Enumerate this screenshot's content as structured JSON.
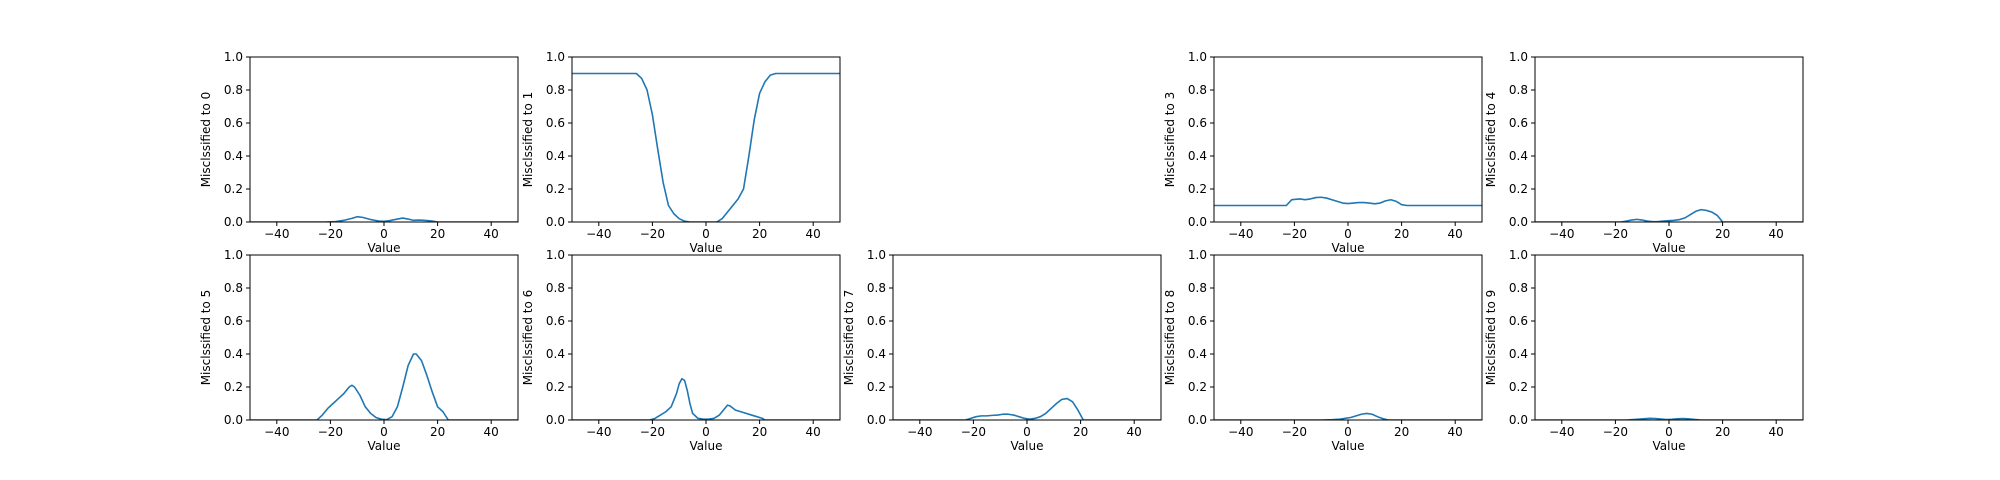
{
  "figure": {
    "line_color": "#1f77b4"
  },
  "chart_data": [
    {
      "type": "line",
      "xlabel": "Value",
      "ylabel": "Misclssified to 0",
      "xlim": [
        -50,
        50
      ],
      "ylim": [
        0,
        1
      ],
      "xticks": [
        -40,
        -20,
        0,
        20,
        40
      ],
      "yticks": [
        0.0,
        0.2,
        0.4,
        0.6,
        0.8,
        1.0
      ],
      "xtick_labels": [
        "−40",
        "−20",
        "0",
        "20",
        "40"
      ],
      "ytick_labels": [
        "0.0",
        "0.2",
        "0.4",
        "0.6",
        "0.8",
        "1.0"
      ],
      "series": [
        {
          "x": [
            -50,
            -22,
            -18,
            -15,
            -12,
            -10,
            -8,
            -5,
            -2,
            0,
            2,
            5,
            7,
            9,
            11,
            13,
            15,
            18,
            20,
            50
          ],
          "y": [
            0,
            0,
            0.003,
            0.01,
            0.022,
            0.032,
            0.028,
            0.015,
            0.006,
            0.004,
            0.008,
            0.018,
            0.024,
            0.018,
            0.01,
            0.012,
            0.01,
            0.006,
            0,
            0
          ]
        }
      ]
    },
    {
      "type": "line",
      "xlabel": "Value",
      "ylabel": "Misclssified to 1",
      "xlim": [
        -50,
        50
      ],
      "ylim": [
        0,
        1
      ],
      "xticks": [
        -40,
        -20,
        0,
        20,
        40
      ],
      "yticks": [
        0.0,
        0.2,
        0.4,
        0.6,
        0.8,
        1.0
      ],
      "xtick_labels": [
        "−40",
        "−20",
        "0",
        "20",
        "40"
      ],
      "ytick_labels": [
        "0.0",
        "0.2",
        "0.4",
        "0.6",
        "0.8",
        "1.0"
      ],
      "series": [
        {
          "x": [
            -50,
            -26,
            -24,
            -22,
            -20,
            -18,
            -16,
            -14,
            -12,
            -10,
            -8,
            -6,
            -4,
            -2,
            0,
            2,
            4,
            6,
            8,
            10,
            12,
            14,
            16,
            18,
            20,
            22,
            24,
            26,
            50
          ],
          "y": [
            0.9,
            0.9,
            0.87,
            0.8,
            0.65,
            0.44,
            0.24,
            0.1,
            0.05,
            0.02,
            0.005,
            0.0,
            0.0,
            0.0,
            0.0,
            0.0,
            0.0,
            0.02,
            0.06,
            0.1,
            0.14,
            0.2,
            0.4,
            0.62,
            0.78,
            0.85,
            0.89,
            0.9,
            0.9
          ]
        }
      ]
    },
    null,
    {
      "type": "line",
      "xlabel": "Value",
      "ylabel": "Misclssified to 3",
      "xlim": [
        -50,
        50
      ],
      "ylim": [
        0,
        1
      ],
      "xticks": [
        -40,
        -20,
        0,
        20,
        40
      ],
      "yticks": [
        0.0,
        0.2,
        0.4,
        0.6,
        0.8,
        1.0
      ],
      "xtick_labels": [
        "−40",
        "−20",
        "0",
        "20",
        "40"
      ],
      "ytick_labels": [
        "0.0",
        "0.2",
        "0.4",
        "0.6",
        "0.8",
        "1.0"
      ],
      "series": [
        {
          "x": [
            -50,
            -23,
            -21,
            -18,
            -16,
            -14,
            -12,
            -10,
            -8,
            -6,
            -4,
            -2,
            0,
            2,
            4,
            6,
            8,
            10,
            12,
            14,
            16,
            18,
            20,
            22,
            50
          ],
          "y": [
            0.1,
            0.1,
            0.135,
            0.14,
            0.135,
            0.14,
            0.148,
            0.15,
            0.145,
            0.135,
            0.125,
            0.115,
            0.112,
            0.115,
            0.118,
            0.118,
            0.115,
            0.11,
            0.115,
            0.128,
            0.135,
            0.125,
            0.105,
            0.1,
            0.1
          ]
        }
      ]
    },
    {
      "type": "line",
      "xlabel": "Value",
      "ylabel": "Misclssified to 4",
      "xlim": [
        -50,
        50
      ],
      "ylim": [
        0,
        1
      ],
      "xticks": [
        -40,
        -20,
        0,
        20,
        40
      ],
      "yticks": [
        0.0,
        0.2,
        0.4,
        0.6,
        0.8,
        1.0
      ],
      "xtick_labels": [
        "−40",
        "−20",
        "0",
        "20",
        "40"
      ],
      "ytick_labels": [
        "0.0",
        "0.2",
        "0.4",
        "0.6",
        "0.8",
        "1.0"
      ],
      "series": [
        {
          "x": [
            -50,
            -18,
            -16,
            -14,
            -12,
            -10,
            -8,
            -6,
            -4,
            -2,
            0,
            2,
            4,
            6,
            8,
            10,
            12,
            14,
            16,
            18,
            20,
            50
          ],
          "y": [
            0,
            0,
            0.005,
            0.012,
            0.016,
            0.012,
            0.005,
            0.002,
            0.003,
            0.006,
            0.008,
            0.01,
            0.015,
            0.025,
            0.045,
            0.065,
            0.075,
            0.07,
            0.06,
            0.04,
            0.0,
            0
          ]
        }
      ]
    },
    {
      "type": "line",
      "xlabel": "Value",
      "ylabel": "Misclssified to 5",
      "xlim": [
        -50,
        50
      ],
      "ylim": [
        0,
        1
      ],
      "xticks": [
        -40,
        -20,
        0,
        20,
        40
      ],
      "yticks": [
        0.0,
        0.2,
        0.4,
        0.6,
        0.8,
        1.0
      ],
      "xtick_labels": [
        "−40",
        "−20",
        "0",
        "20",
        "40"
      ],
      "ytick_labels": [
        "0.0",
        "0.2",
        "0.4",
        "0.6",
        "0.8",
        "1.0"
      ],
      "series": [
        {
          "x": [
            -50,
            -25,
            -23,
            -21,
            -19,
            -17,
            -15,
            -13,
            -12,
            -11,
            -9,
            -7,
            -5,
            -3,
            -1,
            1,
            3,
            5,
            7,
            9,
            11,
            12,
            14,
            16,
            18,
            20,
            22,
            24,
            50
          ],
          "y": [
            0,
            0,
            0.03,
            0.07,
            0.1,
            0.13,
            0.16,
            0.2,
            0.21,
            0.2,
            0.15,
            0.08,
            0.04,
            0.015,
            0.005,
            0.002,
            0.02,
            0.08,
            0.2,
            0.33,
            0.4,
            0.4,
            0.36,
            0.27,
            0.17,
            0.08,
            0.05,
            0.0,
            0
          ]
        }
      ]
    },
    {
      "type": "line",
      "xlabel": "Value",
      "ylabel": "Misclssified to 6",
      "xlim": [
        -50,
        50
      ],
      "ylim": [
        0,
        1
      ],
      "xticks": [
        -40,
        -20,
        0,
        20,
        40
      ],
      "yticks": [
        0.0,
        0.2,
        0.4,
        0.6,
        0.8,
        1.0
      ],
      "xtick_labels": [
        "−40",
        "−20",
        "0",
        "20",
        "40"
      ],
      "ytick_labels": [
        "0.0",
        "0.2",
        "0.4",
        "0.6",
        "0.8",
        "1.0"
      ],
      "series": [
        {
          "x": [
            -50,
            -21,
            -19,
            -17,
            -15,
            -13,
            -11,
            -10,
            -9,
            -8,
            -7,
            -6,
            -5,
            -3,
            -1,
            1,
            3,
            5,
            7,
            8,
            9,
            11,
            13,
            15,
            17,
            19,
            21,
            22,
            50
          ],
          "y": [
            0,
            0,
            0.01,
            0.03,
            0.05,
            0.08,
            0.16,
            0.22,
            0.25,
            0.24,
            0.18,
            0.1,
            0.04,
            0.01,
            0.005,
            0.005,
            0.01,
            0.03,
            0.07,
            0.09,
            0.085,
            0.06,
            0.05,
            0.04,
            0.03,
            0.02,
            0.01,
            0.0,
            0
          ]
        }
      ]
    },
    {
      "type": "line",
      "xlabel": "Value",
      "ylabel": "Misclssified to 7",
      "xlim": [
        -50,
        50
      ],
      "ylim": [
        0,
        1
      ],
      "xticks": [
        -40,
        -20,
        0,
        20,
        40
      ],
      "yticks": [
        0.0,
        0.2,
        0.4,
        0.6,
        0.8,
        1.0
      ],
      "xtick_labels": [
        "−40",
        "−20",
        "0",
        "20",
        "40"
      ],
      "ytick_labels": [
        "0.0",
        "0.2",
        "0.4",
        "0.6",
        "0.8",
        "1.0"
      ],
      "series": [
        {
          "x": [
            -50,
            -23,
            -21,
            -19,
            -17,
            -15,
            -13,
            -11,
            -9,
            -7,
            -5,
            -3,
            -1,
            1,
            3,
            5,
            7,
            9,
            11,
            13,
            15,
            17,
            19,
            21,
            50
          ],
          "y": [
            0,
            0,
            0.01,
            0.02,
            0.025,
            0.025,
            0.028,
            0.03,
            0.035,
            0.035,
            0.03,
            0.02,
            0.01,
            0.005,
            0.01,
            0.02,
            0.04,
            0.07,
            0.1,
            0.125,
            0.13,
            0.11,
            0.06,
            0.0,
            0
          ]
        }
      ]
    },
    {
      "type": "line",
      "xlabel": "Value",
      "ylabel": "Misclssified to 8",
      "xlim": [
        -50,
        50
      ],
      "ylim": [
        0,
        1
      ],
      "xticks": [
        -40,
        -20,
        0,
        20,
        40
      ],
      "yticks": [
        0.0,
        0.2,
        0.4,
        0.6,
        0.8,
        1.0
      ],
      "xtick_labels": [
        "−40",
        "−20",
        "0",
        "20",
        "40"
      ],
      "ytick_labels": [
        "0.0",
        "0.2",
        "0.4",
        "0.6",
        "0.8",
        "1.0"
      ],
      "series": [
        {
          "x": [
            -50,
            -10,
            -6,
            -3,
            -1,
            1,
            3,
            5,
            7,
            9,
            11,
            13,
            15,
            50
          ],
          "y": [
            0,
            0,
            0.002,
            0.005,
            0.01,
            0.015,
            0.025,
            0.035,
            0.04,
            0.035,
            0.02,
            0.008,
            0.0,
            0
          ]
        }
      ]
    },
    {
      "type": "line",
      "xlabel": "Value",
      "ylabel": "Misclssified to 9",
      "xlim": [
        -50,
        50
      ],
      "ylim": [
        0,
        1
      ],
      "xticks": [
        -40,
        -20,
        0,
        20,
        40
      ],
      "yticks": [
        0.0,
        0.2,
        0.4,
        0.6,
        0.8,
        1.0
      ],
      "xtick_labels": [
        "−40",
        "−20",
        "0",
        "20",
        "40"
      ],
      "ytick_labels": [
        "0.0",
        "0.2",
        "0.4",
        "0.6",
        "0.8",
        "1.0"
      ],
      "series": [
        {
          "x": [
            -50,
            -16,
            -12,
            -9,
            -7,
            -5,
            -3,
            -1,
            1,
            3,
            5,
            7,
            9,
            12,
            50
          ],
          "y": [
            0,
            0,
            0.004,
            0.008,
            0.01,
            0.009,
            0.006,
            0.003,
            0.004,
            0.007,
            0.009,
            0.007,
            0.004,
            0.0,
            0
          ]
        }
      ]
    }
  ]
}
